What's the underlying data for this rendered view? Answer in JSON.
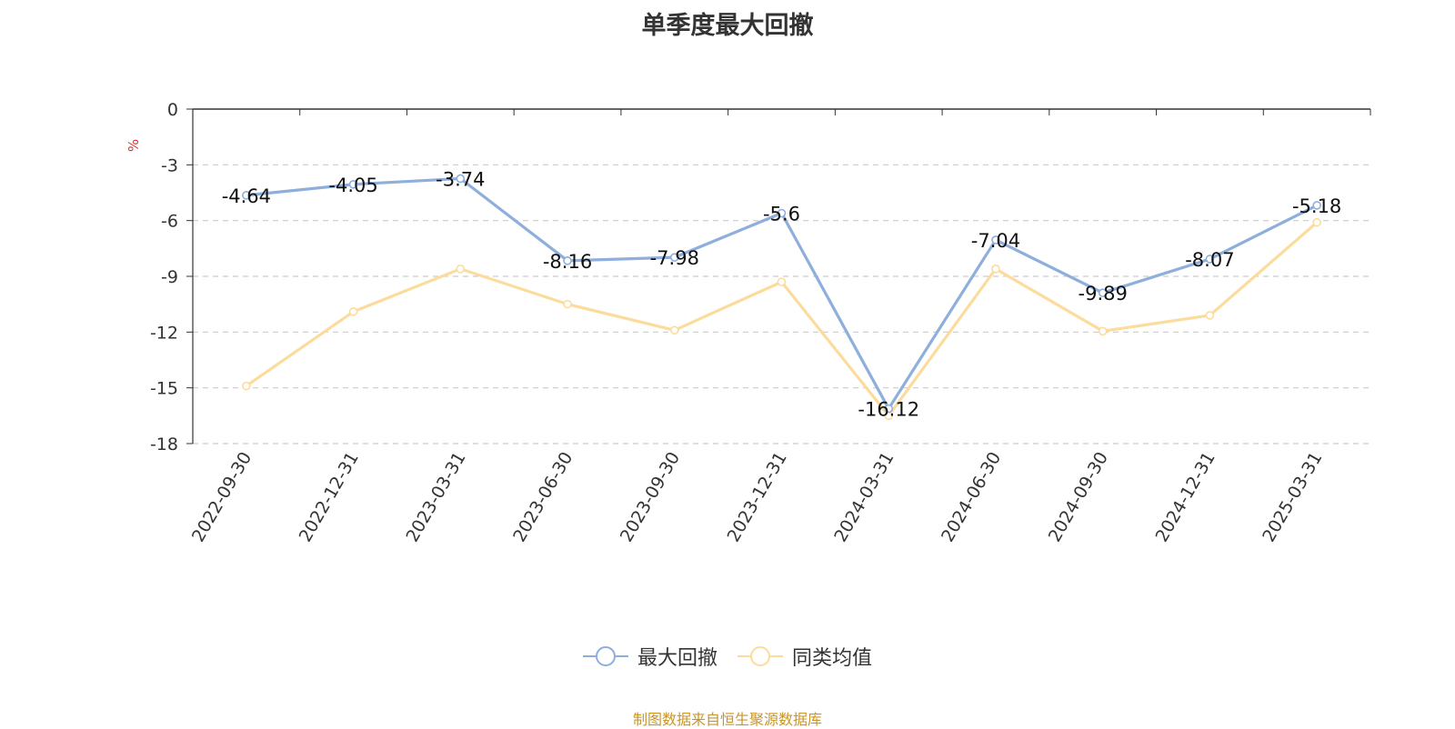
{
  "colors": {
    "series_0": "#8eaedb",
    "series_1": "#fcdc9c",
    "unit": "#e03030",
    "source": "#c8962a",
    "grid": "#cccccc",
    "axis": "#333333"
  },
  "footer": {
    "source": "制图数据来自恒生聚源数据库"
  },
  "chart_data": {
    "type": "line",
    "title": "单季度最大回撤",
    "ylabel": "%",
    "xlabel": "",
    "ylim": [
      -18,
      0
    ],
    "yticks": [
      0,
      -3,
      -6,
      -9,
      -12,
      -15,
      -18
    ],
    "grid": true,
    "legend_position": "bottom",
    "categories": [
      "2022-09-30",
      "2022-12-31",
      "2023-03-31",
      "2023-06-30",
      "2023-09-30",
      "2023-12-31",
      "2024-03-31",
      "2024-06-30",
      "2024-09-30",
      "2024-12-31",
      "2025-03-31"
    ],
    "series": [
      {
        "name": "最大回撤",
        "values": [
          -4.64,
          -4.05,
          -3.74,
          -8.16,
          -7.98,
          -5.6,
          -16.12,
          -7.04,
          -9.89,
          -8.07,
          -5.18
        ],
        "data_labels": [
          "-4.64",
          "-4.05",
          "-3.74",
          "-8.16",
          "-7.98",
          "-5.6",
          "-16.12",
          "-7.04",
          "-9.89",
          "-8.07",
          "-5.18"
        ]
      },
      {
        "name": "同类均值",
        "values": [
          -14.9,
          -10.9,
          -8.6,
          -10.5,
          -11.9,
          -9.3,
          -16.5,
          -8.6,
          -11.95,
          -11.1,
          -6.1
        ]
      }
    ]
  }
}
